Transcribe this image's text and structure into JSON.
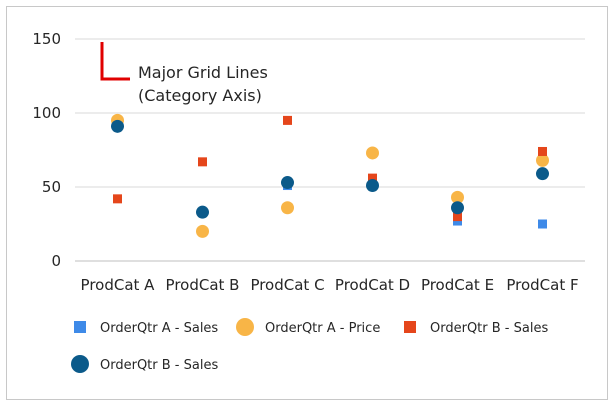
{
  "chart_data": {
    "type": "scatter",
    "title": "",
    "xlabel": "",
    "ylabel": "",
    "categories": [
      "ProdCat A",
      "ProdCat B",
      "ProdCat C",
      "ProdCat D",
      "ProdCat E",
      "ProdCat F"
    ],
    "ylim": [
      0,
      150
    ],
    "yticks": [
      "0",
      "50",
      "100",
      "150"
    ],
    "grid": "horizontal",
    "legend_position": "bottom",
    "series": [
      {
        "name": "OrderQtr A - Sales",
        "marker": "square",
        "color": "#3e8ae8",
        "values": [
          91,
          33,
          51,
          51,
          27,
          25
        ]
      },
      {
        "name": "OrderQtr A - Price",
        "marker": "circle",
        "color": "#f8b547",
        "values": [
          95,
          20,
          36,
          73,
          43,
          68
        ]
      },
      {
        "name": "OrderQtr B - Sales",
        "marker": "square",
        "color": "#e5461b",
        "values": [
          42,
          67,
          95,
          56,
          30,
          74
        ]
      },
      {
        "name": "OrderQtr B - Sales",
        "marker": "circle",
        "color": "#0b5a8a",
        "values": [
          91,
          33,
          53,
          51,
          36,
          59
        ]
      }
    ],
    "annotation": {
      "line1": "Major Grid Lines",
      "line2": "(Category Axis)",
      "color": "#e00000"
    }
  }
}
